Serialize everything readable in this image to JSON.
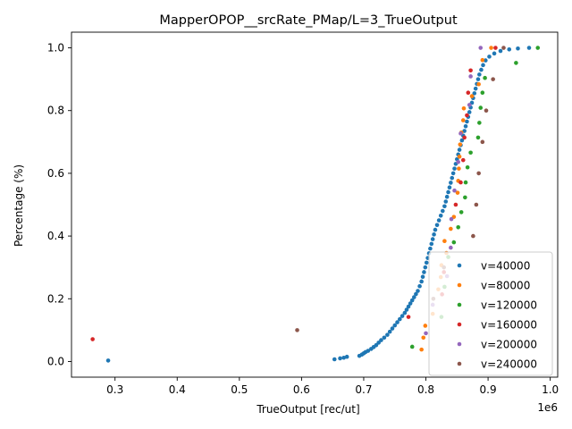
{
  "chart_data": {
    "type": "scatter",
    "title": "MapperOPOP__srcRate_PMap/L=3_TrueOutput",
    "xlabel": "TrueOutput [rec/ut]",
    "ylabel": "Percentage (%)",
    "x_offset_label": "1e6",
    "xlim": [
      0.23,
      1.012
    ],
    "ylim": [
      -0.05,
      1.05
    ],
    "x_scale": 1000000,
    "xticks": [
      0.3,
      0.4,
      0.5,
      0.6,
      0.7,
      0.8,
      0.9,
      1.0
    ],
    "xtick_labels": [
      "0.3",
      "0.4",
      "0.5",
      "0.6",
      "0.7",
      "0.8",
      "0.9",
      "1.0"
    ],
    "yticks": [
      0.0,
      0.2,
      0.4,
      0.6,
      0.8,
      1.0
    ],
    "ytick_labels": [
      "0.0",
      "0.2",
      "0.4",
      "0.6",
      "0.8",
      "1.0"
    ],
    "grid": false,
    "legend_position": "lower-right",
    "series": [
      {
        "name": "v=40000",
        "color": "#1f77b4",
        "points": [
          [
            0.289,
            0.003
          ],
          [
            0.653,
            0.007
          ],
          [
            0.662,
            0.01
          ],
          [
            0.668,
            0.012
          ],
          [
            0.673,
            0.015
          ],
          [
            0.693,
            0.018
          ],
          [
            0.697,
            0.022
          ],
          [
            0.7,
            0.026
          ],
          [
            0.703,
            0.03
          ],
          [
            0.707,
            0.034
          ],
          [
            0.712,
            0.04
          ],
          [
            0.716,
            0.046
          ],
          [
            0.72,
            0.052
          ],
          [
            0.724,
            0.06
          ],
          [
            0.728,
            0.068
          ],
          [
            0.733,
            0.076
          ],
          [
            0.738,
            0.085
          ],
          [
            0.742,
            0.095
          ],
          [
            0.746,
            0.105
          ],
          [
            0.75,
            0.115
          ],
          [
            0.754,
            0.125
          ],
          [
            0.758,
            0.135
          ],
          [
            0.762,
            0.145
          ],
          [
            0.766,
            0.155
          ],
          [
            0.769,
            0.165
          ],
          [
            0.772,
            0.175
          ],
          [
            0.775,
            0.185
          ],
          [
            0.778,
            0.195
          ],
          [
            0.781,
            0.205
          ],
          [
            0.784,
            0.215
          ],
          [
            0.787,
            0.225
          ],
          [
            0.79,
            0.24
          ],
          [
            0.793,
            0.255
          ],
          [
            0.795,
            0.27
          ],
          [
            0.797,
            0.285
          ],
          [
            0.799,
            0.3
          ],
          [
            0.801,
            0.315
          ],
          [
            0.803,
            0.33
          ],
          [
            0.805,
            0.345
          ],
          [
            0.807,
            0.36
          ],
          [
            0.809,
            0.375
          ],
          [
            0.811,
            0.39
          ],
          [
            0.813,
            0.405
          ],
          [
            0.815,
            0.42
          ],
          [
            0.818,
            0.435
          ],
          [
            0.821,
            0.45
          ],
          [
            0.824,
            0.465
          ],
          [
            0.827,
            0.48
          ],
          [
            0.83,
            0.495
          ],
          [
            0.832,
            0.51
          ],
          [
            0.834,
            0.525
          ],
          [
            0.836,
            0.54
          ],
          [
            0.838,
            0.555
          ],
          [
            0.84,
            0.57
          ],
          [
            0.842,
            0.585
          ],
          [
            0.844,
            0.6
          ],
          [
            0.846,
            0.615
          ],
          [
            0.848,
            0.63
          ],
          [
            0.85,
            0.645
          ],
          [
            0.852,
            0.66
          ],
          [
            0.854,
            0.675
          ],
          [
            0.856,
            0.69
          ],
          [
            0.858,
            0.705
          ],
          [
            0.86,
            0.72
          ],
          [
            0.862,
            0.735
          ],
          [
            0.864,
            0.75
          ],
          [
            0.866,
            0.765
          ],
          [
            0.868,
            0.78
          ],
          [
            0.87,
            0.795
          ],
          [
            0.872,
            0.81
          ],
          [
            0.874,
            0.825
          ],
          [
            0.876,
            0.84
          ],
          [
            0.878,
            0.855
          ],
          [
            0.88,
            0.87
          ],
          [
            0.882,
            0.885
          ],
          [
            0.884,
            0.9
          ],
          [
            0.886,
            0.915
          ],
          [
            0.889,
            0.93
          ],
          [
            0.892,
            0.945
          ],
          [
            0.896,
            0.96
          ],
          [
            0.902,
            0.972
          ],
          [
            0.91,
            0.982
          ],
          [
            0.92,
            0.99
          ],
          [
            0.934,
            0.995
          ],
          [
            0.948,
            0.998
          ],
          [
            0.966,
            1.0
          ]
        ]
      },
      {
        "name": "v=80000",
        "color": "#ff7f0e",
        "points": [
          [
            0.793,
            0.038
          ],
          [
            0.796,
            0.076
          ],
          [
            0.799,
            0.114
          ],
          [
            0.811,
            0.152
          ],
          [
            0.82,
            0.23
          ],
          [
            0.824,
            0.269
          ],
          [
            0.825,
            0.307
          ],
          [
            0.83,
            0.384
          ],
          [
            0.833,
            0.346
          ],
          [
            0.84,
            0.423
          ],
          [
            0.845,
            0.461
          ],
          [
            0.851,
            0.538
          ],
          [
            0.852,
            0.576
          ],
          [
            0.853,
            0.615
          ],
          [
            0.854,
            0.653
          ],
          [
            0.855,
            0.692
          ],
          [
            0.857,
            0.73
          ],
          [
            0.86,
            0.769
          ],
          [
            0.861,
            0.807
          ],
          [
            0.874,
            0.846
          ],
          [
            0.885,
            0.884
          ],
          [
            0.891,
            0.961
          ],
          [
            0.905,
            1.0
          ]
        ]
      },
      {
        "name": "v=120000",
        "color": "#2ca02c",
        "points": [
          [
            0.778,
            0.047
          ],
          [
            0.825,
            0.142
          ],
          [
            0.83,
            0.238
          ],
          [
            0.836,
            0.333
          ],
          [
            0.845,
            0.38
          ],
          [
            0.852,
            0.428
          ],
          [
            0.857,
            0.476
          ],
          [
            0.863,
            0.523
          ],
          [
            0.864,
            0.571
          ],
          [
            0.867,
            0.619
          ],
          [
            0.872,
            0.666
          ],
          [
            0.884,
            0.714
          ],
          [
            0.886,
            0.761
          ],
          [
            0.888,
            0.809
          ],
          [
            0.891,
            0.857
          ],
          [
            0.895,
            0.904
          ],
          [
            0.945,
            0.952
          ],
          [
            0.98,
            1.0
          ]
        ]
      },
      {
        "name": "v=160000",
        "color": "#d62728",
        "points": [
          [
            0.264,
            0.071
          ],
          [
            0.772,
            0.142
          ],
          [
            0.826,
            0.214
          ],
          [
            0.829,
            0.285
          ],
          [
            0.848,
            0.5
          ],
          [
            0.856,
            0.571
          ],
          [
            0.86,
            0.642
          ],
          [
            0.862,
            0.714
          ],
          [
            0.866,
            0.785
          ],
          [
            0.868,
            0.857
          ],
          [
            0.872,
            0.928
          ],
          [
            0.912,
            1.0
          ]
        ]
      },
      {
        "name": "v=200000",
        "color": "#9467bd",
        "points": [
          [
            0.8,
            0.09
          ],
          [
            0.811,
            0.181
          ],
          [
            0.834,
            0.272
          ],
          [
            0.84,
            0.363
          ],
          [
            0.841,
            0.454
          ],
          [
            0.846,
            0.545
          ],
          [
            0.852,
            0.636
          ],
          [
            0.856,
            0.727
          ],
          [
            0.87,
            0.818
          ],
          [
            0.872,
            0.909
          ],
          [
            0.888,
            1.0
          ]
        ]
      },
      {
        "name": "v=240000",
        "color": "#8c564b",
        "points": [
          [
            0.593,
            0.1
          ],
          [
            0.812,
            0.2
          ],
          [
            0.829,
            0.3
          ],
          [
            0.876,
            0.4
          ],
          [
            0.881,
            0.5
          ],
          [
            0.885,
            0.6
          ],
          [
            0.891,
            0.7
          ],
          [
            0.897,
            0.8
          ],
          [
            0.908,
            0.9
          ],
          [
            0.925,
            1.0
          ]
        ]
      }
    ]
  }
}
